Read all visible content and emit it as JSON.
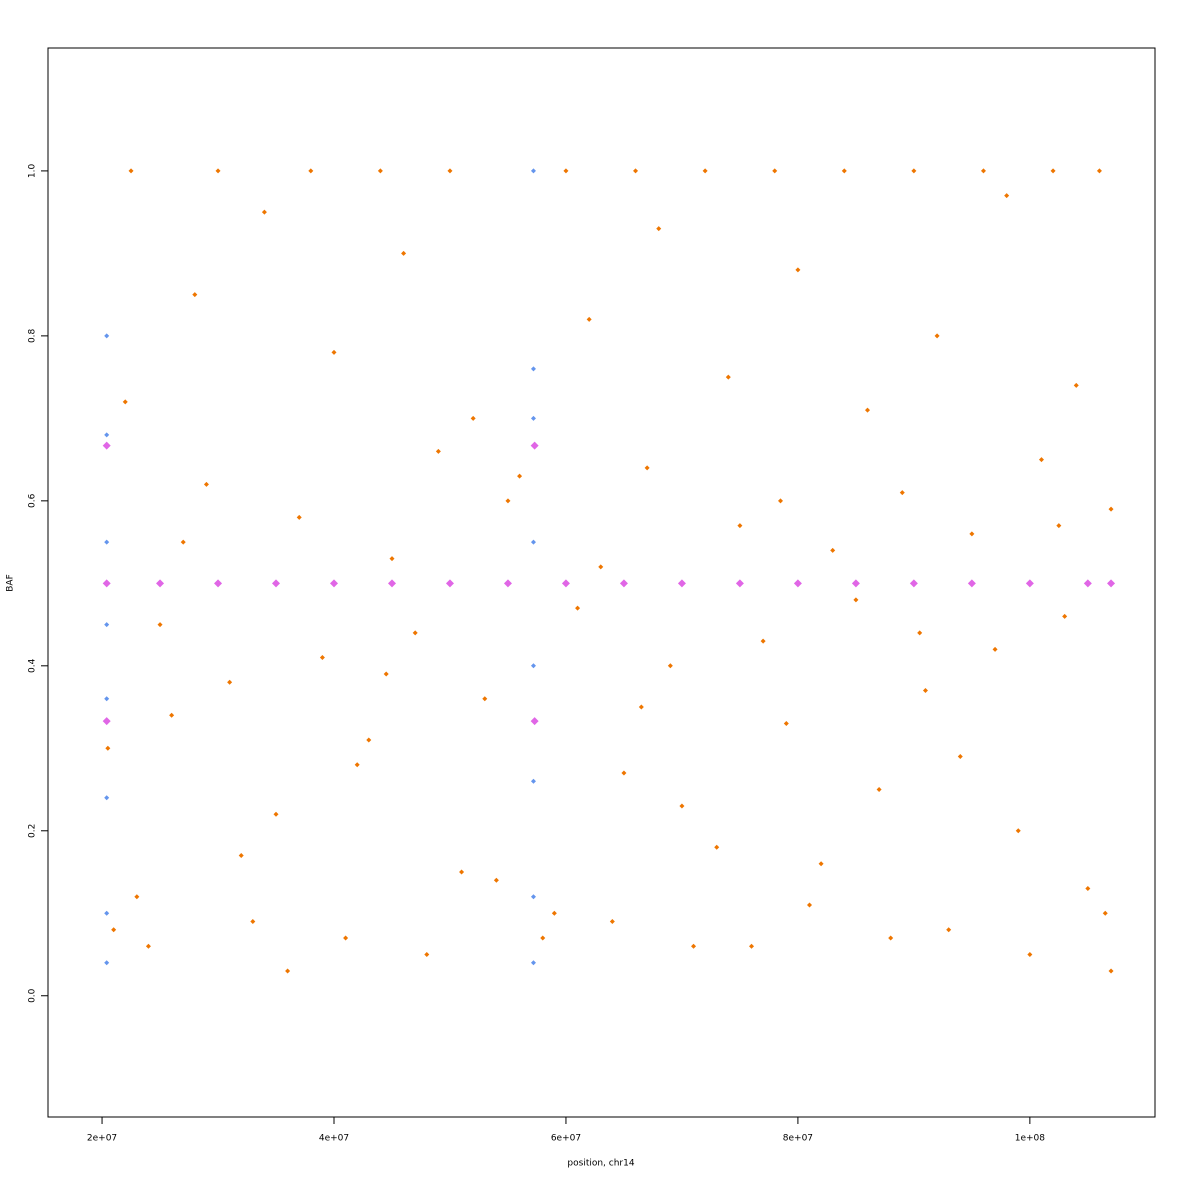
{
  "chart_data": {
    "type": "scatter",
    "x_label": "position, chr14",
    "y_label": "BAF",
    "xlim": [
      15340000,
      110790000
    ],
    "ylim": [
      -0.147,
      1.149
    ],
    "xticks": [
      {
        "value": 20000000,
        "label": "2e+07"
      },
      {
        "value": 40000000,
        "label": "4e+07"
      },
      {
        "value": 60000000,
        "label": "6e+07"
      },
      {
        "value": 80000000,
        "label": "8e+07"
      },
      {
        "value": 100000000,
        "label": "1e+08"
      }
    ],
    "yticks": [
      {
        "value": 0,
        "label": "0.0"
      },
      0.2,
      0.4,
      0.6,
      0.8,
      {
        "value": 1,
        "label": "1.0"
      }
    ],
    "grid": false,
    "series": [
      {
        "color": "#EE7600",
        "size": 2.5,
        "x": [
          21000000,
          23000000,
          25000000,
          27000000,
          29000000,
          31000000,
          33000000,
          35000000,
          37000000,
          39000000,
          41000000,
          43000000,
          45000000,
          47000000,
          49000000,
          51000000,
          53000000,
          55000000,
          59000000,
          61000000,
          63000000,
          65000000,
          67000000,
          69000000,
          71000000,
          73000000,
          75000000,
          77000000,
          79000000,
          81000000,
          83000000,
          85000000,
          87000000,
          89000000,
          91000000,
          93000000,
          95000000,
          97000000,
          99000000,
          101000000,
          103000000,
          105000000,
          107000000,
          22000000,
          28000000,
          34000000,
          40000000,
          46000000,
          52000000,
          62000000,
          68000000,
          74000000,
          80000000,
          86000000,
          92000000,
          98000000,
          104000000,
          22500000,
          30000000,
          38000000,
          44000000,
          50000000,
          60000000,
          66000000,
          72000000,
          78000000,
          84000000,
          90000000,
          96000000,
          102000000,
          106000000,
          24000000,
          32000000,
          36000000,
          42000000,
          48000000,
          54000000,
          58000000,
          64000000,
          70000000,
          76000000,
          82000000,
          88000000,
          94000000,
          100000000,
          106500000,
          107000000,
          26000000,
          44500000,
          56000000,
          66500000,
          78500000,
          90500000,
          102500000,
          20500000
        ],
        "values": [
          0.08,
          0.12,
          0.45,
          0.55,
          0.62,
          0.38,
          0.09,
          0.22,
          0.58,
          0.41,
          0.07,
          0.31,
          0.53,
          0.44,
          0.66,
          0.15,
          0.36,
          0.6,
          0.1,
          0.47,
          0.52,
          0.27,
          0.64,
          0.4,
          0.06,
          0.18,
          0.57,
          0.43,
          0.33,
          0.11,
          0.54,
          0.48,
          0.25,
          0.61,
          0.37,
          0.08,
          0.56,
          0.42,
          0.2,
          0.65,
          0.46,
          0.13,
          0.59,
          0.72,
          0.85,
          0.95,
          0.78,
          0.9,
          0.7,
          0.82,
          0.93,
          0.75,
          0.88,
          0.71,
          0.8,
          0.97,
          0.74,
          1,
          1,
          1,
          1,
          1,
          1,
          1,
          1,
          1,
          1,
          1,
          1,
          1,
          1,
          0.06,
          0.17,
          0.03,
          0.28,
          0.05,
          0.14,
          0.07,
          0.09,
          0.23,
          0.06,
          0.16,
          0.07,
          0.29,
          0.05,
          0.1,
          0.03,
          0.34,
          0.39,
          0.63,
          0.35,
          0.6,
          0.44,
          0.57,
          0.3
        ]
      },
      {
        "color": "#6495ED",
        "size": 2.5,
        "x": [
          20400000,
          20400000,
          20400000,
          20400000,
          20400000,
          20400000,
          20400000,
          20400000,
          57200000,
          57200000,
          57200000,
          57200000,
          57200000,
          57200000,
          57200000,
          57200000
        ],
        "values": [
          0.04,
          0.1,
          0.24,
          0.36,
          0.45,
          0.55,
          0.68,
          0.8,
          0.04,
          0.12,
          0.26,
          0.4,
          0.55,
          0.7,
          0.76,
          1
        ]
      },
      {
        "color": "#E066E6",
        "size": 4,
        "x": [
          20400000,
          25000000,
          30000000,
          35000000,
          40000000,
          45000000,
          50000000,
          55000000,
          60000000,
          65000000,
          70000000,
          75000000,
          80000000,
          85000000,
          90000000,
          95000000,
          100000000,
          105000000,
          107000000,
          20400000,
          20400000,
          57300000,
          57300000
        ],
        "values": [
          0.5,
          0.5,
          0.5,
          0.5,
          0.5,
          0.5,
          0.5,
          0.5,
          0.5,
          0.5,
          0.5,
          0.5,
          0.5,
          0.5,
          0.5,
          0.5,
          0.5,
          0.5,
          0.5,
          0.333,
          0.667,
          0.333,
          0.667
        ]
      }
    ]
  }
}
